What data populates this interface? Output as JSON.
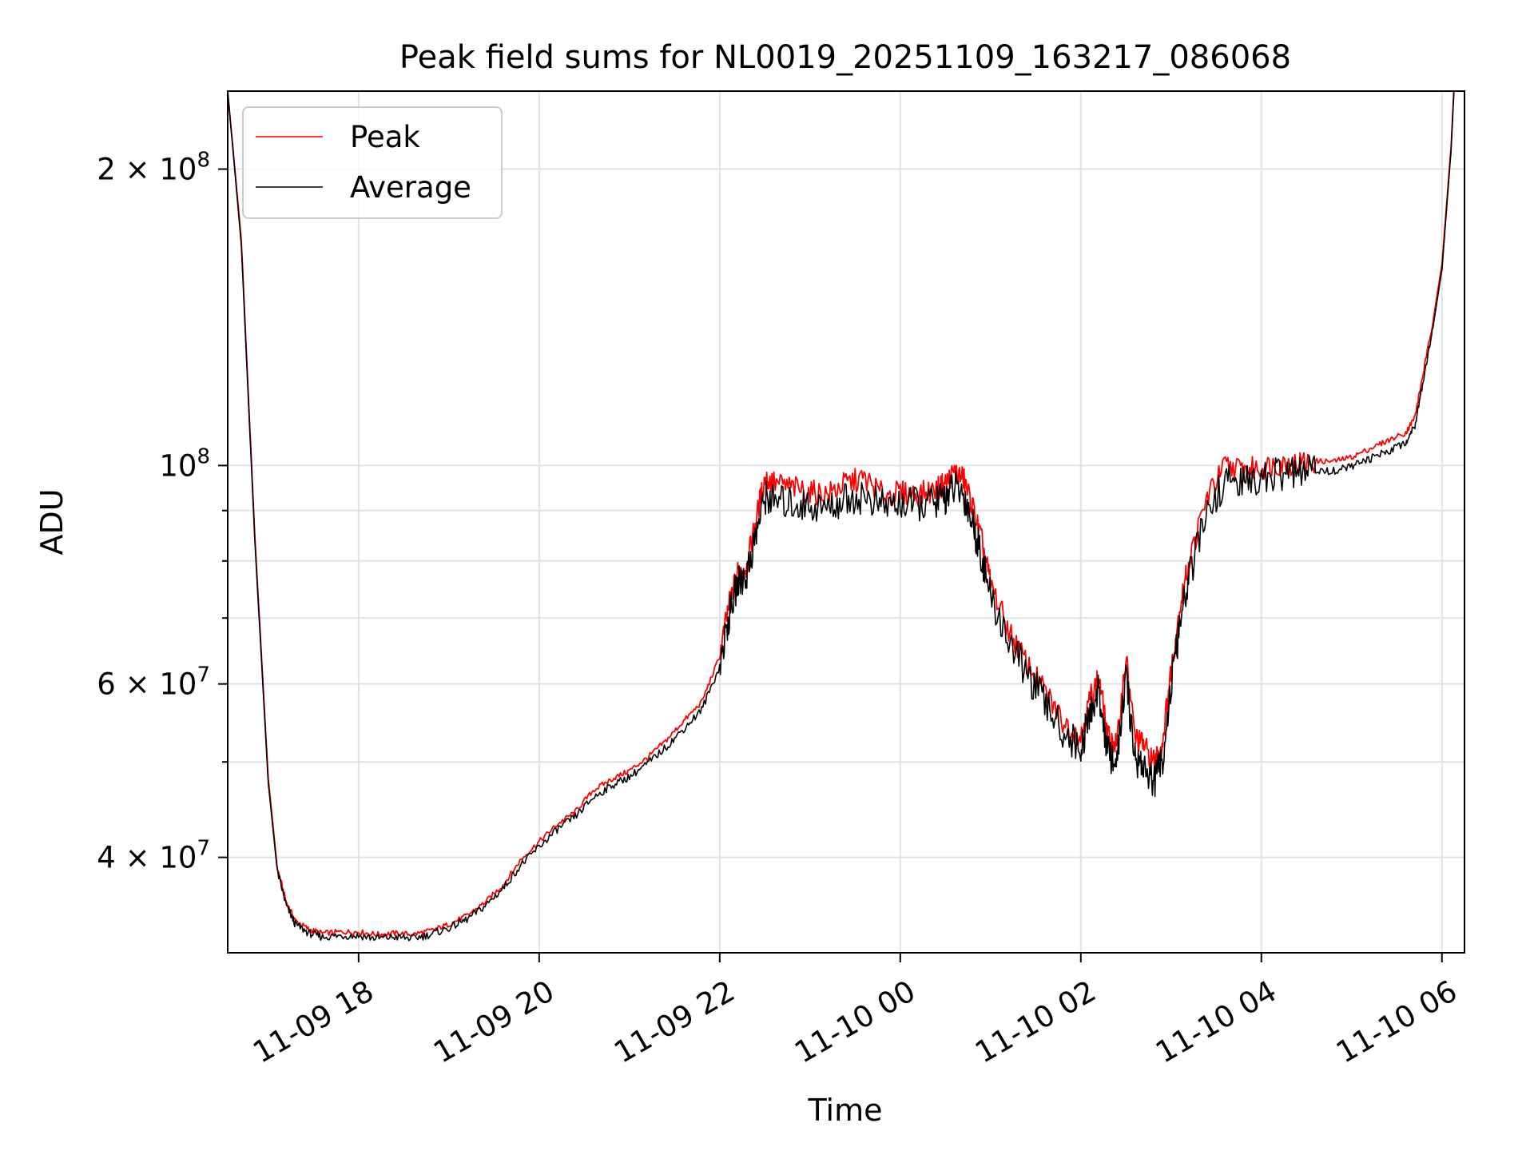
{
  "chart_data": {
    "type": "line",
    "title": "Peak field sums for NL0019_20251109_163217_086068",
    "xlabel": "Time",
    "ylabel": "ADU",
    "yscale": "log",
    "ylim": [
      32000000,
      240000000
    ],
    "xlim_hours_from_2025_11_09_00": [
      16.55,
      30.25
    ],
    "grid": true,
    "legend_position": "top-left",
    "colors": {
      "peak": "#ff0000",
      "average": "#000000",
      "grid": "#e2e2e2"
    },
    "x_ticks": [
      {
        "hour": 18,
        "label": "11-09 18"
      },
      {
        "hour": 20,
        "label": "11-09 20"
      },
      {
        "hour": 22,
        "label": "11-09 22"
      },
      {
        "hour": 24,
        "label": "11-10 00"
      },
      {
        "hour": 26,
        "label": "11-10 02"
      },
      {
        "hour": 28,
        "label": "11-10 04"
      },
      {
        "hour": 30,
        "label": "11-10 06"
      }
    ],
    "y_major_ticks": [
      {
        "value": 40000000,
        "mantissa": "4",
        "times": "×",
        "base": "10",
        "exp": "7"
      },
      {
        "value": 60000000,
        "mantissa": "6",
        "times": "×",
        "base": "10",
        "exp": "7"
      },
      {
        "value": 100000000,
        "mantissa": "",
        "times": "",
        "base": "10",
        "exp": "8"
      },
      {
        "value": 200000000,
        "mantissa": "2",
        "times": "×",
        "base": "10",
        "exp": "8"
      }
    ],
    "y_minor_ticks": [
      50000000,
      70000000,
      80000000,
      90000000
    ],
    "series": [
      {
        "name": "Peak",
        "color": "#ff0000",
        "x": [
          16.55,
          16.7,
          16.85,
          17.0,
          17.1,
          17.2,
          17.3,
          17.45,
          17.6,
          17.8,
          18.0,
          18.2,
          18.4,
          18.6,
          18.8,
          19.0,
          19.2,
          19.4,
          19.6,
          19.8,
          20.0,
          20.2,
          20.4,
          20.6,
          20.8,
          21.0,
          21.2,
          21.4,
          21.6,
          21.8,
          22.0,
          22.1,
          22.2,
          22.3,
          22.4,
          22.5,
          22.6,
          22.8,
          23.0,
          23.2,
          23.4,
          23.6,
          23.8,
          24.0,
          24.2,
          24.4,
          24.5,
          24.6,
          24.7,
          24.8,
          24.9,
          25.0,
          25.2,
          25.4,
          25.6,
          25.8,
          26.0,
          26.1,
          26.2,
          26.3,
          26.4,
          26.5,
          26.6,
          26.7,
          26.8,
          26.9,
          27.0,
          27.1,
          27.2,
          27.4,
          27.6,
          27.8,
          28.0,
          28.2,
          28.4,
          28.6,
          28.8,
          29.0,
          29.2,
          29.4,
          29.6,
          29.7,
          29.8,
          29.9,
          30.0,
          30.1,
          30.15
        ],
        "values": [
          240000000,
          170000000,
          85000000,
          48000000,
          39000000,
          36000000,
          34500000,
          33800000,
          33500000,
          33600000,
          33600000,
          33400000,
          33500000,
          33400000,
          33700000,
          34200000,
          34900000,
          36000000,
          37500000,
          39800000,
          41500000,
          43200000,
          44500000,
          46800000,
          48000000,
          49000000,
          50500000,
          52500000,
          55000000,
          57500000,
          64000000,
          72000000,
          78000000,
          79000000,
          88000000,
          97000000,
          96000000,
          95000000,
          94000000,
          93500000,
          96000000,
          97000000,
          93500000,
          93800000,
          93500000,
          94500000,
          96000000,
          98500000,
          97000000,
          91000000,
          84000000,
          76000000,
          68000000,
          63000000,
          59000000,
          55000000,
          53000000,
          58000000,
          61000000,
          53000000,
          52000000,
          64000000,
          53000000,
          52000000,
          50000000,
          52000000,
          62000000,
          72000000,
          80000000,
          93000000,
          100000000,
          99000000,
          99500000,
          100500000,
          100500000,
          101000000,
          101000000,
          102000000,
          104000000,
          106000000,
          108000000,
          112000000,
          125000000,
          140000000,
          160000000,
          210000000,
          260000000
        ]
      },
      {
        "name": "Average",
        "color": "#000000",
        "x": [
          16.55,
          16.7,
          16.85,
          17.0,
          17.1,
          17.2,
          17.3,
          17.45,
          17.6,
          17.8,
          18.0,
          18.2,
          18.4,
          18.6,
          18.8,
          19.0,
          19.2,
          19.4,
          19.6,
          19.8,
          20.0,
          20.2,
          20.4,
          20.6,
          20.8,
          21.0,
          21.2,
          21.4,
          21.6,
          21.8,
          22.0,
          22.1,
          22.2,
          22.3,
          22.4,
          22.5,
          22.6,
          22.8,
          23.0,
          23.2,
          23.4,
          23.6,
          23.8,
          24.0,
          24.2,
          24.4,
          24.5,
          24.6,
          24.7,
          24.8,
          24.9,
          25.0,
          25.2,
          25.4,
          25.6,
          25.8,
          26.0,
          26.1,
          26.2,
          26.3,
          26.4,
          26.5,
          26.6,
          26.7,
          26.8,
          26.9,
          27.0,
          27.1,
          27.2,
          27.4,
          27.6,
          27.8,
          28.0,
          28.2,
          28.4,
          28.6,
          28.8,
          29.0,
          29.2,
          29.4,
          29.6,
          29.7,
          29.8,
          29.9,
          30.0,
          30.1,
          30.15
        ],
        "values": [
          240000000,
          168000000,
          84000000,
          47500000,
          38700000,
          35700000,
          34200000,
          33500000,
          33200000,
          33300000,
          33300000,
          33100000,
          33200000,
          33100000,
          33400000,
          33900000,
          34600000,
          35700000,
          37200000,
          39300000,
          41000000,
          42700000,
          44000000,
          46000000,
          47300000,
          48300000,
          49800000,
          51700000,
          54000000,
          56500000,
          62500000,
          70000000,
          76000000,
          77500000,
          85000000,
          93000000,
          92000000,
          91500000,
          91000000,
          90500000,
          92500000,
          93000000,
          91000000,
          91500000,
          91200000,
          92000000,
          93000000,
          95000000,
          93500000,
          87500000,
          81000000,
          73500000,
          66500000,
          61500000,
          57500000,
          53800000,
          51500000,
          56000000,
          59000000,
          51000000,
          50000000,
          61000000,
          50500000,
          49500000,
          47500000,
          50000000,
          59500000,
          69000000,
          77000000,
          89500000,
          96500000,
          96000000,
          97000000,
          98000000,
          98200000,
          98700000,
          98800000,
          99800000,
          101500000,
          103500000,
          105500000,
          110000000,
          123000000,
          138000000,
          158000000,
          208000000,
          258000000
        ]
      }
    ]
  }
}
